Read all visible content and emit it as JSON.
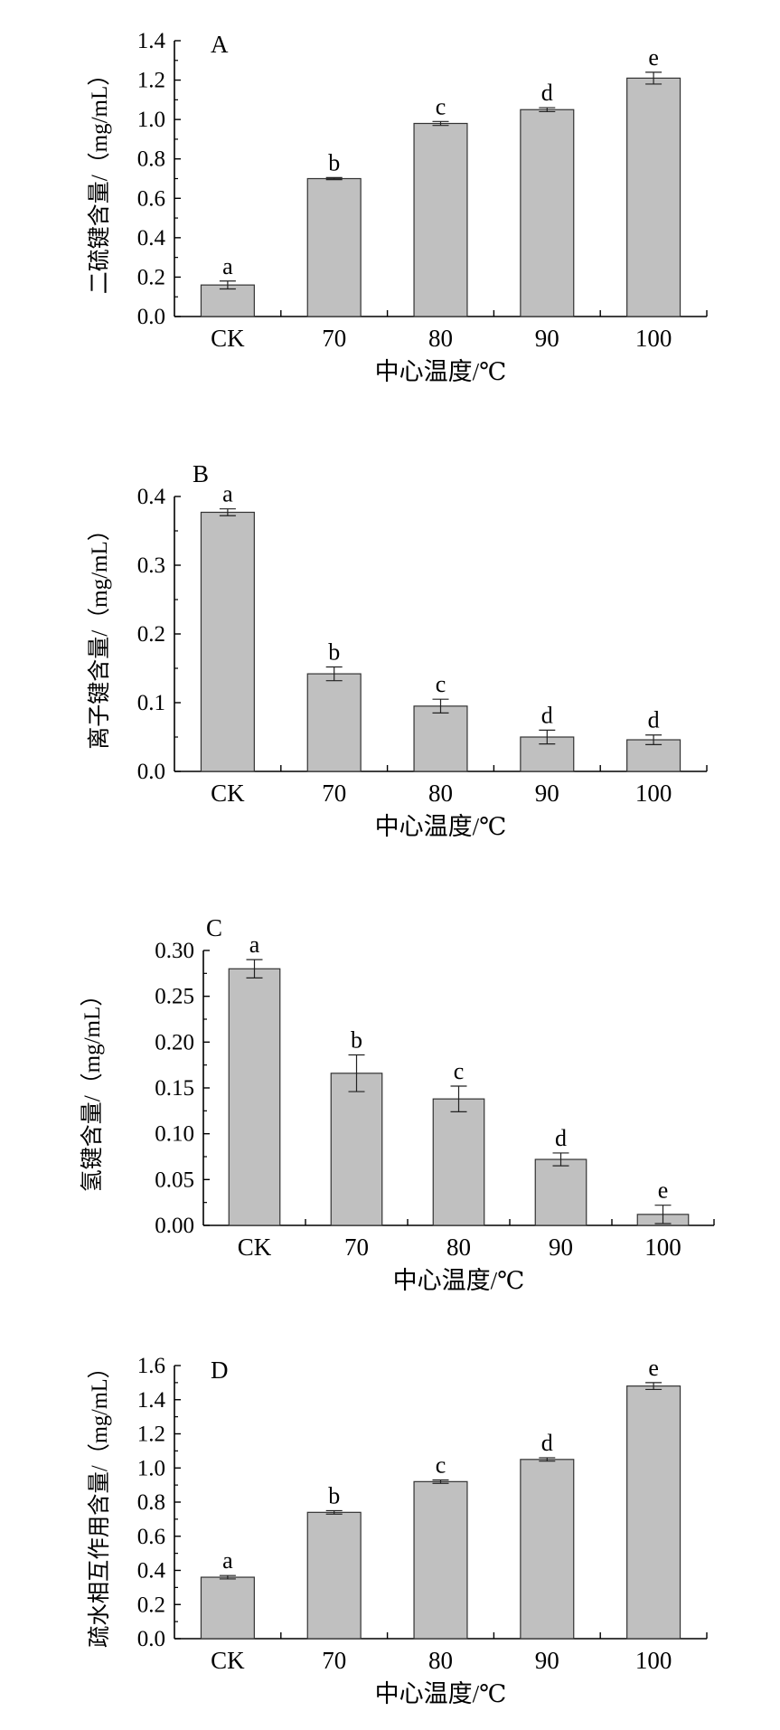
{
  "chart_data": [
    {
      "type": "bar",
      "panel_label": "A",
      "categories": [
        "CK",
        "70",
        "80",
        "90",
        "100"
      ],
      "values": [
        0.16,
        0.7,
        0.98,
        1.05,
        1.21
      ],
      "errors": [
        0.02,
        0.005,
        0.01,
        0.01,
        0.03
      ],
      "letters": [
        "a",
        "b",
        "c",
        "d",
        "e"
      ],
      "xlabel": "中心温度/℃",
      "ylabel": "二硫键含量/（mg/mL）",
      "ylim": [
        0,
        1.4
      ],
      "yticks": [
        "0.0",
        "0.2",
        "0.4",
        "0.6",
        "0.8",
        "1.0",
        "1.2",
        "1.4"
      ],
      "bar_color": "#c0c0c0"
    },
    {
      "type": "bar",
      "panel_label": "B",
      "categories": [
        "CK",
        "70",
        "80",
        "90",
        "100"
      ],
      "values": [
        0.377,
        0.142,
        0.095,
        0.05,
        0.046
      ],
      "errors": [
        0.005,
        0.01,
        0.01,
        0.01,
        0.007
      ],
      "letters": [
        "a",
        "b",
        "c",
        "d",
        "d"
      ],
      "xlabel": "中心温度/℃",
      "ylabel": "离子键含量/（mg/mL）",
      "ylim": [
        0,
        0.4
      ],
      "yticks": [
        "0.0",
        "0.1",
        "0.2",
        "0.3",
        "0.4"
      ],
      "bar_color": "#c0c0c0"
    },
    {
      "type": "bar",
      "panel_label": "C",
      "categories": [
        "CK",
        "70",
        "80",
        "90",
        "100"
      ],
      "values": [
        0.28,
        0.166,
        0.138,
        0.072,
        0.012
      ],
      "errors": [
        0.01,
        0.02,
        0.014,
        0.007,
        0.01
      ],
      "letters": [
        "a",
        "b",
        "c",
        "d",
        "e"
      ],
      "xlabel": "中心温度/℃",
      "ylabel": "氢键含量/（mg/mL）",
      "ylim": [
        0,
        0.3
      ],
      "yticks": [
        "0.00",
        "0.05",
        "0.10",
        "0.15",
        "0.20",
        "0.25",
        "0.30"
      ],
      "bar_color": "#c0c0c0"
    },
    {
      "type": "bar",
      "panel_label": "D",
      "categories": [
        "CK",
        "70",
        "80",
        "90",
        "100"
      ],
      "values": [
        0.36,
        0.74,
        0.92,
        1.05,
        1.48
      ],
      "errors": [
        0.01,
        0.01,
        0.01,
        0.01,
        0.02
      ],
      "letters": [
        "a",
        "b",
        "c",
        "d",
        "e"
      ],
      "xlabel": "中心温度/℃",
      "ylabel": "疏水相互作用含量/（mg/mL）",
      "ylim": [
        0,
        1.6
      ],
      "yticks": [
        "0.0",
        "0.2",
        "0.4",
        "0.6",
        "0.8",
        "1.0",
        "1.2",
        "1.4",
        "1.6"
      ],
      "bar_color": "#c0c0c0"
    }
  ]
}
